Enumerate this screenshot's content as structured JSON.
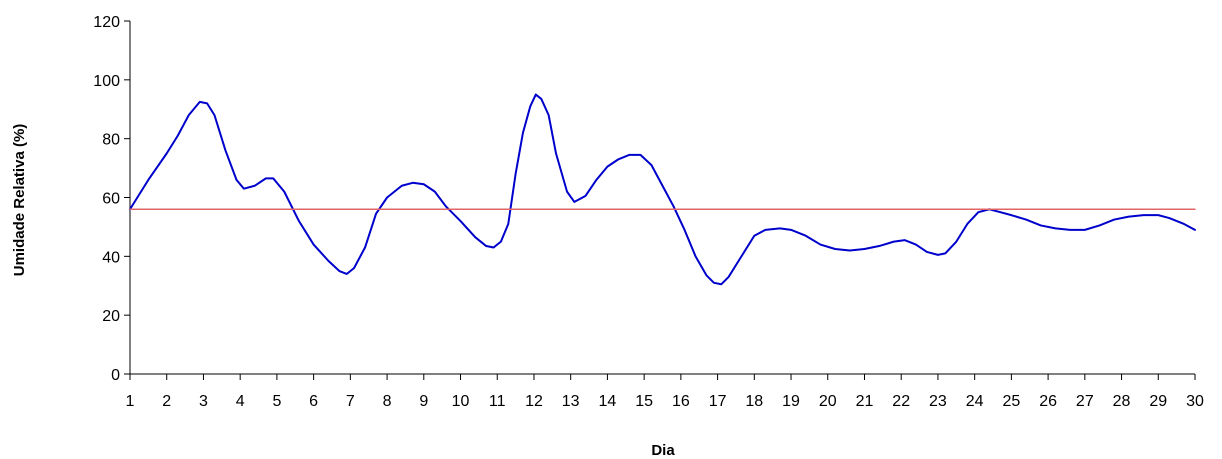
{
  "chart_data": {
    "type": "line",
    "xlabel": "Dia",
    "ylabel": "Umidade Relativa (%)",
    "ylim": [
      0,
      120
    ],
    "xlim": [
      1,
      30
    ],
    "x_ticks": [
      "1",
      "2",
      "3",
      "4",
      "5",
      "6",
      "7",
      "8",
      "9",
      "10",
      "11",
      "12",
      "13",
      "14",
      "15",
      "16",
      "17",
      "18",
      "19",
      "20",
      "21",
      "22",
      "23",
      "24",
      "25",
      "26",
      "27",
      "28",
      "29",
      "30"
    ],
    "y_ticks": [
      "0",
      "20",
      "40",
      "60",
      "80",
      "100",
      "120"
    ],
    "grid": false,
    "legend": "none",
    "series": [
      {
        "color": "#0000cc",
        "points": [
          [
            1,
            56
          ],
          [
            1.5,
            66
          ],
          [
            2,
            75
          ],
          [
            2.3,
            81
          ],
          [
            2.6,
            88
          ],
          [
            2.9,
            92.5
          ],
          [
            3.1,
            92
          ],
          [
            3.3,
            88
          ],
          [
            3.6,
            76
          ],
          [
            3.9,
            66
          ],
          [
            4.1,
            63
          ],
          [
            4.4,
            64
          ],
          [
            4.7,
            66.5
          ],
          [
            4.9,
            66.5
          ],
          [
            5.2,
            62
          ],
          [
            5.6,
            52
          ],
          [
            6.0,
            44
          ],
          [
            6.4,
            38.5
          ],
          [
            6.7,
            35
          ],
          [
            6.9,
            34
          ],
          [
            7.1,
            36
          ],
          [
            7.4,
            43
          ],
          [
            7.7,
            54.5
          ],
          [
            8.0,
            60
          ],
          [
            8.4,
            64
          ],
          [
            8.7,
            65
          ],
          [
            9.0,
            64.5
          ],
          [
            9.3,
            62
          ],
          [
            9.6,
            57
          ],
          [
            10.0,
            52
          ],
          [
            10.4,
            46.5
          ],
          [
            10.7,
            43.5
          ],
          [
            10.9,
            43
          ],
          [
            11.1,
            45
          ],
          [
            11.3,
            51
          ],
          [
            11.5,
            68
          ],
          [
            11.7,
            82
          ],
          [
            11.9,
            91
          ],
          [
            12.05,
            95
          ],
          [
            12.2,
            93.5
          ],
          [
            12.4,
            88
          ],
          [
            12.6,
            75
          ],
          [
            12.9,
            62
          ],
          [
            13.1,
            58.5
          ],
          [
            13.4,
            60.5
          ],
          [
            13.7,
            66
          ],
          [
            14.0,
            70.5
          ],
          [
            14.3,
            73
          ],
          [
            14.6,
            74.5
          ],
          [
            14.9,
            74.5
          ],
          [
            15.2,
            71
          ],
          [
            15.5,
            64
          ],
          [
            15.8,
            57
          ],
          [
            16.1,
            49
          ],
          [
            16.4,
            40
          ],
          [
            16.7,
            33.5
          ],
          [
            16.9,
            31
          ],
          [
            17.1,
            30.5
          ],
          [
            17.3,
            33
          ],
          [
            17.6,
            39
          ],
          [
            18.0,
            47
          ],
          [
            18.3,
            49
          ],
          [
            18.7,
            49.5
          ],
          [
            19.0,
            49
          ],
          [
            19.4,
            47
          ],
          [
            19.8,
            44
          ],
          [
            20.2,
            42.5
          ],
          [
            20.6,
            42
          ],
          [
            21.0,
            42.5
          ],
          [
            21.4,
            43.5
          ],
          [
            21.8,
            45
          ],
          [
            22.1,
            45.5
          ],
          [
            22.4,
            44
          ],
          [
            22.7,
            41.5
          ],
          [
            23.0,
            40.5
          ],
          [
            23.2,
            41
          ],
          [
            23.5,
            45
          ],
          [
            23.8,
            51
          ],
          [
            24.1,
            55
          ],
          [
            24.4,
            56
          ],
          [
            24.7,
            55
          ],
          [
            25.0,
            54
          ],
          [
            25.4,
            52.5
          ],
          [
            25.8,
            50.5
          ],
          [
            26.2,
            49.5
          ],
          [
            26.6,
            49
          ],
          [
            27.0,
            49
          ],
          [
            27.4,
            50.5
          ],
          [
            27.8,
            52.5
          ],
          [
            28.2,
            53.5
          ],
          [
            28.6,
            54
          ],
          [
            29.0,
            54
          ],
          [
            29.3,
            53
          ],
          [
            29.7,
            51
          ],
          [
            30,
            49
          ]
        ]
      },
      {
        "color": "#e06666",
        "points": [
          [
            1,
            56
          ],
          [
            30,
            56
          ]
        ]
      }
    ]
  }
}
